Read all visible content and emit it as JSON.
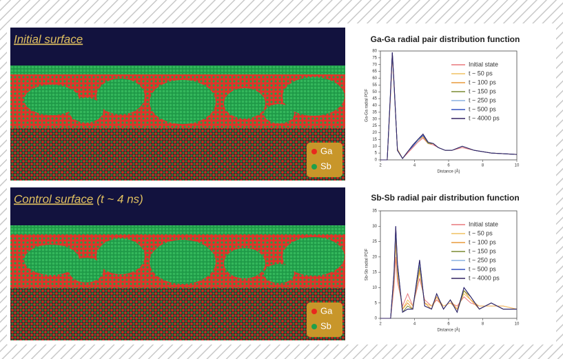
{
  "panels": [
    {
      "title": "Initial surface"
    },
    {
      "title": "Control surface",
      "subtitle": "(t ~ 4 ns)"
    }
  ],
  "atom_legend": [
    {
      "name": "Ga",
      "color": "#e8281e"
    },
    {
      "name": "Sb",
      "color": "#1fa04a"
    }
  ],
  "chart_data": [
    {
      "type": "line",
      "title": "Ga-Ga radial pair distribution function",
      "x_label": "Distance (Å)",
      "y_label": "Ga-Ga radial PDF",
      "x": [
        2,
        2.4,
        2.6,
        2.7,
        2.8,
        3.0,
        3.3,
        3.6,
        3.9,
        4.2,
        4.5,
        4.8,
        5.1,
        5.4,
        5.8,
        6.2,
        6.8,
        7.5,
        8.5,
        10
      ],
      "xlim": [
        2,
        10
      ],
      "xticks": [
        2,
        4,
        6,
        8,
        10
      ],
      "ylim": [
        0,
        80
      ],
      "yticks": [
        0,
        5,
        10,
        15,
        20,
        25,
        30,
        35,
        40,
        45,
        50,
        55,
        60,
        65,
        70,
        75,
        80
      ],
      "series": [
        {
          "name": "Initial state",
          "color": "#e8767a",
          "values": [
            0,
            0,
            48,
            77,
            54,
            8,
            1,
            5,
            9,
            13,
            16,
            12,
            11,
            9,
            7,
            7,
            9,
            7,
            5,
            4
          ]
        },
        {
          "name": "t ~ 50 ps",
          "color": "#f0c060",
          "values": [
            0,
            0,
            49,
            78,
            55,
            8,
            1,
            6,
            10,
            14,
            17,
            12,
            12,
            9,
            7,
            7,
            10,
            7,
            5,
            4
          ]
        },
        {
          "name": "t ~ 100 ps",
          "color": "#e89a3a",
          "values": [
            0,
            0,
            50,
            78,
            55,
            7,
            1,
            6,
            10,
            14,
            17,
            12,
            12,
            9,
            7,
            7,
            10,
            7,
            5,
            4
          ]
        },
        {
          "name": "t ~ 150 ps",
          "color": "#7a8a30",
          "values": [
            0,
            0,
            50,
            79,
            56,
            7,
            1,
            6,
            10,
            14,
            18,
            12,
            12,
            9,
            7,
            7,
            10,
            7,
            5,
            4
          ]
        },
        {
          "name": "t ~ 250 ps",
          "color": "#8ab0e0",
          "values": [
            0,
            0,
            51,
            79,
            56,
            7,
            1,
            6,
            10,
            14,
            18,
            13,
            12,
            9,
            7,
            7,
            10,
            7,
            5,
            4
          ]
        },
        {
          "name": "t ~ 500 ps",
          "color": "#3050c0",
          "values": [
            0,
            0,
            51,
            79,
            56,
            7,
            1,
            6,
            10,
            15,
            18,
            13,
            12,
            9,
            7,
            7,
            10,
            7,
            5,
            4
          ]
        },
        {
          "name": "t ~ 4000 ps",
          "color": "#302060",
          "values": [
            0,
            0,
            52,
            79,
            57,
            7,
            1,
            6,
            11,
            15,
            19,
            13,
            12,
            9,
            7,
            7,
            10,
            7,
            5,
            4
          ]
        }
      ]
    },
    {
      "type": "line",
      "title": "Sb-Sb radial pair distribution function",
      "x_label": "Distance (Å)",
      "y_label": "Sb-Sb radial PDF",
      "x": [
        2,
        2.6,
        2.8,
        2.9,
        3.0,
        3.3,
        3.6,
        3.9,
        4.3,
        4.6,
        5.0,
        5.3,
        5.7,
        6.1,
        6.5,
        6.9,
        7.3,
        7.8,
        8.5,
        9.2,
        10
      ],
      "xlim": [
        2,
        10
      ],
      "xticks": [
        2,
        4,
        6,
        8,
        10
      ],
      "ylim": [
        0,
        35
      ],
      "yticks": [
        0,
        5,
        10,
        15,
        20,
        25,
        30,
        35
      ],
      "series": [
        {
          "name": "Initial state",
          "color": "#e8767a",
          "values": [
            0,
            0,
            10,
            20,
            12,
            4,
            8,
            4,
            13,
            6,
            4,
            6,
            4,
            5,
            4,
            7,
            5,
            4,
            4,
            4,
            3
          ]
        },
        {
          "name": "t ~ 50 ps",
          "color": "#f0c060",
          "values": [
            0,
            0,
            12,
            24,
            14,
            3,
            6,
            4,
            15,
            5,
            4,
            7,
            4,
            5,
            3,
            8,
            6,
            4,
            4,
            4,
            3
          ]
        },
        {
          "name": "t ~ 100 ps",
          "color": "#e89a3a",
          "values": [
            0,
            0,
            13,
            26,
            15,
            3,
            5,
            3,
            16,
            5,
            3,
            7,
            3,
            6,
            3,
            9,
            6,
            3,
            5,
            3,
            3
          ]
        },
        {
          "name": "t ~ 150 ps",
          "color": "#7a8a30",
          "values": [
            0,
            0,
            14,
            28,
            16,
            2,
            4,
            3,
            17,
            4,
            3,
            8,
            3,
            6,
            2,
            9,
            7,
            3,
            5,
            3,
            3
          ]
        },
        {
          "name": "t ~ 250 ps",
          "color": "#8ab0e0",
          "values": [
            0,
            0,
            14,
            29,
            17,
            2,
            3,
            3,
            18,
            4,
            3,
            8,
            3,
            6,
            2,
            10,
            7,
            3,
            5,
            3,
            3
          ]
        },
        {
          "name": "t ~ 500 ps",
          "color": "#3050c0",
          "values": [
            0,
            0,
            15,
            30,
            18,
            2,
            3,
            3,
            19,
            4,
            3,
            8,
            3,
            6,
            2,
            10,
            7,
            3,
            5,
            3,
            3
          ]
        },
        {
          "name": "t ~ 4000 ps",
          "color": "#302060",
          "values": [
            0,
            0,
            15,
            30,
            18,
            2,
            3,
            3,
            19,
            4,
            3,
            8,
            3,
            6,
            2,
            10,
            7,
            3,
            5,
            3,
            3
          ]
        }
      ]
    }
  ]
}
